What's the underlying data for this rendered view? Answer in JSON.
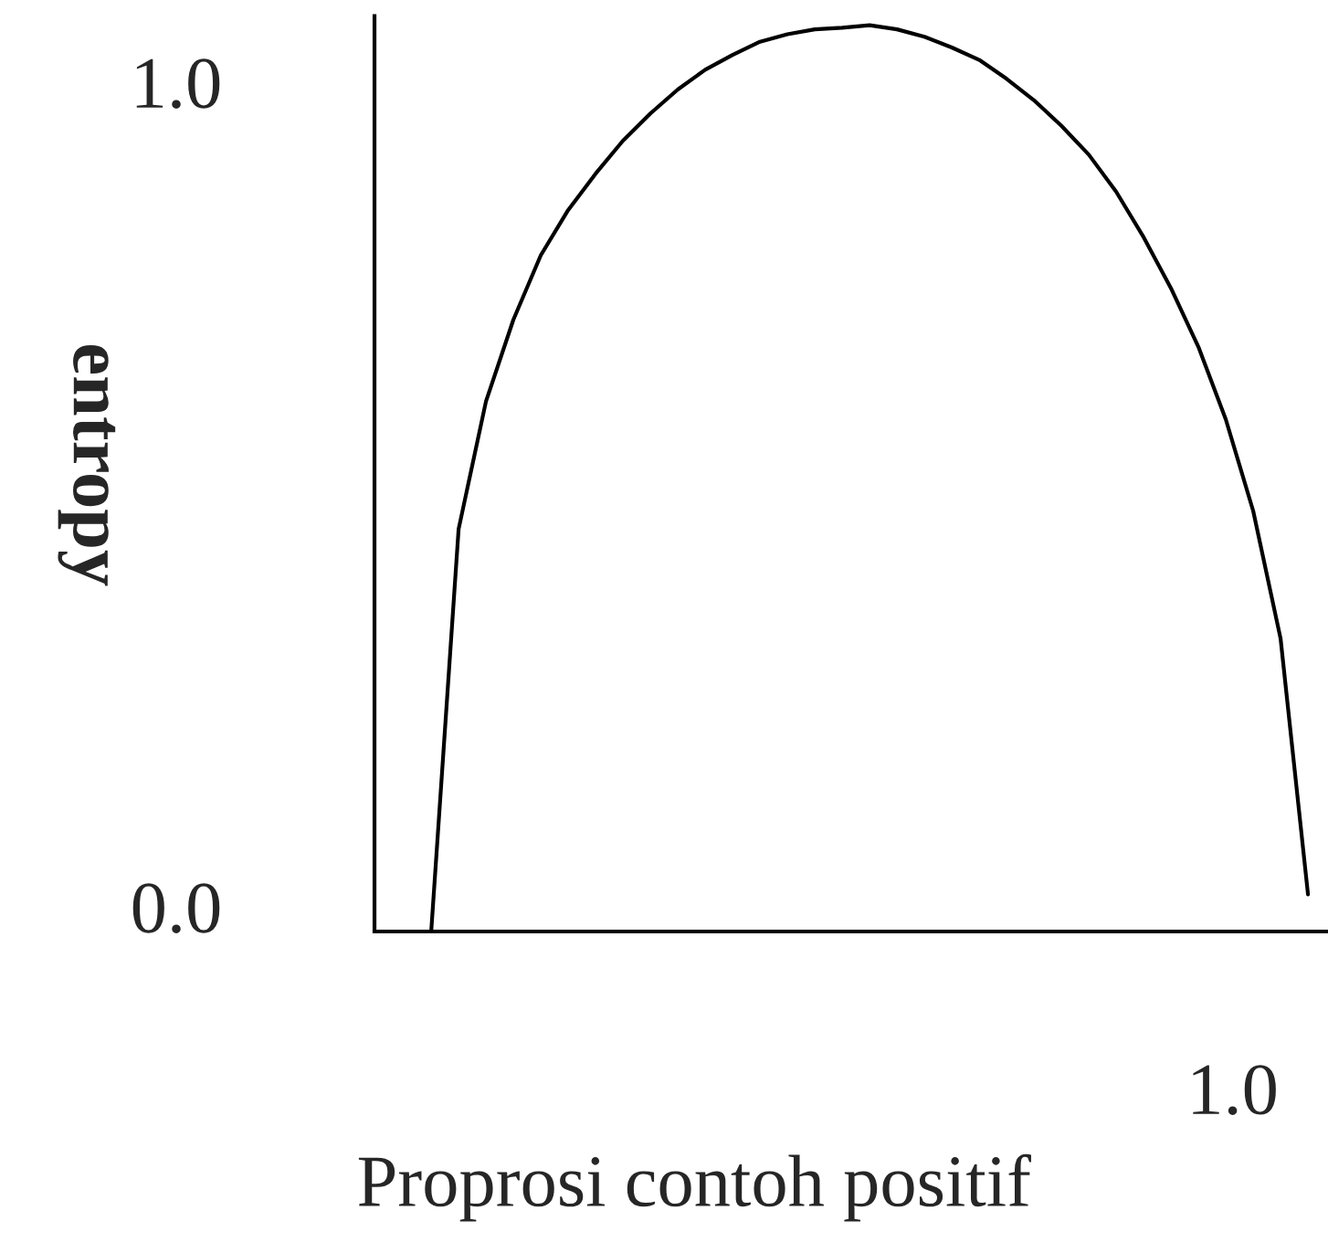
{
  "chart_data": {
    "type": "line",
    "xlabel": "Proprosi contoh positif",
    "ylabel": "entropy",
    "categories": [
      null,
      null,
      null,
      null,
      null,
      null,
      null,
      null,
      null,
      null,
      null,
      null,
      null,
      null,
      null,
      null,
      null,
      null,
      null,
      null,
      null,
      null,
      null,
      null,
      null,
      null,
      null,
      null,
      null,
      null,
      null,
      null,
      null
    ],
    "series": [
      {
        "color": "#000000",
        "values": [
          -0.03,
          0.458,
          0.613,
          0.712,
          0.79,
          0.845,
          0.889,
          0.929,
          0.962,
          0.991,
          1.015,
          1.033,
          1.049,
          1.058,
          1.064,
          1.066,
          1.069,
          1.064,
          1.055,
          1.042,
          1.027,
          1.004,
          0.978,
          0.947,
          0.912,
          0.867,
          0.812,
          0.75,
          0.679,
          0.591,
          0.48,
          0.325,
          0.015
        ]
      }
    ],
    "ylim": [
      -0.03,
      1.08
    ],
    "yticks": [
      {
        "value": 0.0,
        "label": "0.0"
      },
      {
        "value": 1.0,
        "label": "1.0"
      }
    ],
    "annotations": [
      "1.0"
    ],
    "tick_labels": "y",
    "grid": false,
    "legend": false,
    "marker": "none",
    "line_style": "solid"
  }
}
